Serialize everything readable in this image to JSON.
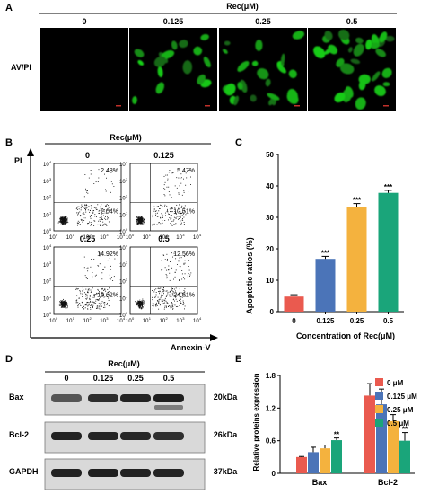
{
  "panels": {
    "A": "A",
    "B": "B",
    "C": "C",
    "D": "D",
    "E": "E"
  },
  "treatment_label": "Rec(μM)",
  "concentrations": [
    "0",
    "0.125",
    "0.25",
    "0.5"
  ],
  "panel_a": {
    "row_label": "AV/PI"
  },
  "panel_b": {
    "y_label": "PI",
    "x_label": "Annexin-V",
    "tick_labels": [
      "10",
      "10",
      "10",
      "10",
      "10"
    ],
    "tick_exponents": [
      "0",
      "1",
      "2",
      "3",
      "4"
    ],
    "quadrants": [
      {
        "concentration": "0",
        "upper_right": "2.48%",
        "lower_right": "2.04%"
      },
      {
        "concentration": "0.125",
        "upper_right": "5.47%",
        "lower_right": "10.51%"
      },
      {
        "concentration": "0.25",
        "upper_right": "14.92%",
        "lower_right": "19.62%"
      },
      {
        "concentration": "0.5",
        "upper_right": "12.56%",
        "lower_right": "24.61%"
      }
    ]
  },
  "panel_d": {
    "blots": [
      {
        "protein": "Bax",
        "size": "20kDa"
      },
      {
        "protein": "Bcl-2",
        "size": "26kDa"
      },
      {
        "protein": "GAPDH",
        "size": "37kDa"
      }
    ]
  },
  "chart_data": [
    {
      "type": "bar",
      "categories": [
        "0",
        "0.125",
        "0.25",
        "0.5"
      ],
      "values": [
        4.8,
        16.8,
        33.2,
        37.8
      ],
      "errors": [
        0.6,
        0.8,
        1.2,
        0.8
      ],
      "significance": [
        "",
        "***",
        "***",
        "***"
      ],
      "xlabel": "Concentration of Rec(μM)",
      "ylabel": "Apoptotic ratios (%)",
      "ylim": [
        0,
        50
      ],
      "yticks": [
        "0",
        "10",
        "20",
        "30",
        "40",
        "50"
      ],
      "colors": [
        "#ea5a4f",
        "#4b74b8",
        "#f4b23e",
        "#1aa57a"
      ]
    },
    {
      "type": "bar",
      "categories": [
        "Bax",
        "Bcl-2"
      ],
      "series": [
        {
          "name": "0  μM",
          "values": [
            0.3,
            1.43
          ],
          "errors": [
            0.01,
            0.22
          ],
          "color": "#ea5a4f",
          "sig": [
            "",
            ""
          ]
        },
        {
          "name": "0.125  μM",
          "values": [
            0.39,
            1.27
          ],
          "errors": [
            0.09,
            0.28
          ],
          "color": "#4b74b8",
          "sig": [
            "",
            ""
          ]
        },
        {
          "name": "0.25  μM",
          "values": [
            0.46,
            0.96
          ],
          "errors": [
            0.06,
            0.12
          ],
          "color": "#f4b23e",
          "sig": [
            "",
            ""
          ]
        },
        {
          "name": "0.5  μM",
          "values": [
            0.61,
            0.6
          ],
          "errors": [
            0.04,
            0.15
          ],
          "color": "#1aa57a",
          "sig": [
            "**",
            "**"
          ]
        }
      ],
      "ylabel": "Relative proteins expression",
      "ylim": [
        0,
        1.8
      ],
      "yticks": [
        "0",
        "0.6",
        "1.2",
        "1.8"
      ]
    }
  ]
}
